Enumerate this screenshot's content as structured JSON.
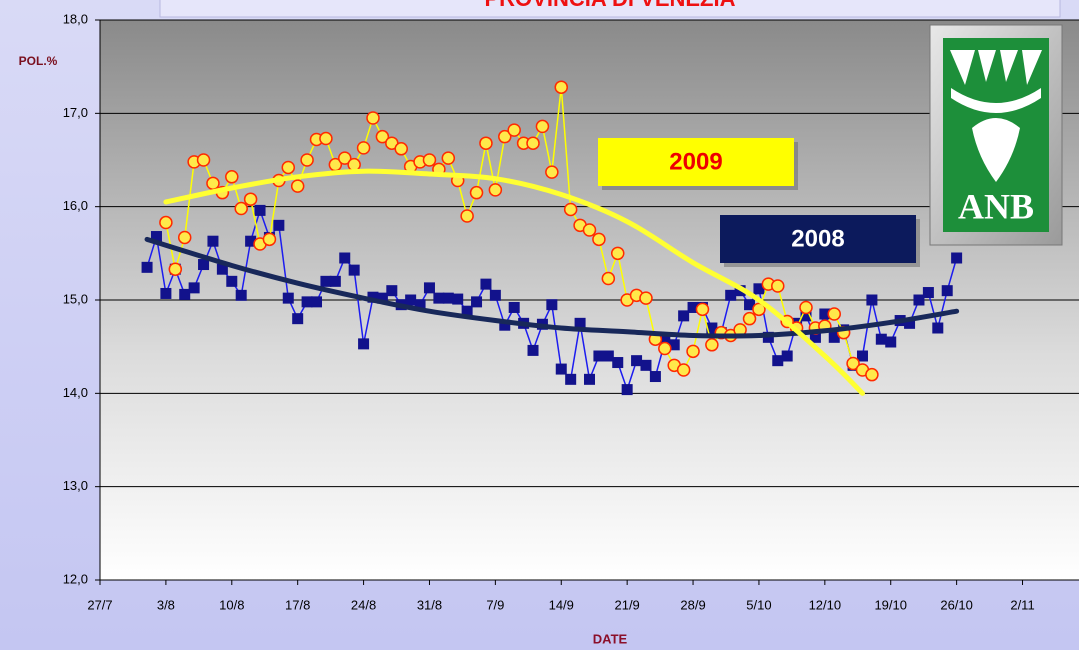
{
  "chart_data": {
    "type": "line",
    "title": "PROVINCIA DI VENEZIA",
    "y_label": "POL.%",
    "x_label": "DATE",
    "logo_text": "ANB",
    "ylim": [
      12,
      18
    ],
    "yticks": [
      {
        "value": 12,
        "label": "12,0"
      },
      {
        "value": 13,
        "label": "13,0"
      },
      {
        "value": 14,
        "label": "14,0"
      },
      {
        "value": 15,
        "label": "15,0"
      },
      {
        "value": 16,
        "label": "16,0"
      },
      {
        "value": 17,
        "label": "17,0"
      },
      {
        "value": 18,
        "label": "18,0"
      }
    ],
    "xlim": [
      "27/7",
      "8/11"
    ],
    "xticks": [
      "27/7",
      "3/8",
      "10/8",
      "17/8",
      "24/8",
      "31/8",
      "7/9",
      "14/9",
      "21/9",
      "28/9",
      "5/10",
      "12/10",
      "19/10",
      "26/10",
      "2/11"
    ],
    "grid": true,
    "series": [
      {
        "name": "2008",
        "color": "#1c1cf0",
        "marker": "square",
        "marker_color": "#12128c",
        "label_box_color": "#0c1a5c",
        "label_text_color": "#ffffff",
        "trend_color": "#18285a",
        "x": [
          "1/8",
          "2/8",
          "3/8",
          "4/8",
          "5/8",
          "6/8",
          "7/8",
          "8/8",
          "9/8",
          "10/8",
          "11/8",
          "12/8",
          "13/8",
          "14/8",
          "15/8",
          "16/8",
          "17/8",
          "18/8",
          "19/8",
          "20/8",
          "21/8",
          "22/8",
          "23/8",
          "24/8",
          "25/8",
          "26/8",
          "27/8",
          "28/8",
          "29/8",
          "30/8",
          "31/8",
          "1/9",
          "2/9",
          "3/9",
          "4/9",
          "5/9",
          "6/9",
          "7/9",
          "8/9",
          "9/9",
          "10/9",
          "11/9",
          "12/9",
          "13/9",
          "14/9",
          "15/9",
          "16/9",
          "17/9",
          "18/9",
          "19/9",
          "20/9",
          "21/9",
          "22/9",
          "23/9",
          "24/9",
          "25/9",
          "26/9",
          "27/9",
          "28/9",
          "29/9",
          "30/9",
          "1/10",
          "2/10",
          "3/10",
          "4/10",
          "5/10",
          "6/10",
          "7/10",
          "8/10",
          "9/10",
          "10/10",
          "11/10",
          "12/10",
          "13/10",
          "14/10",
          "15/10",
          "16/10",
          "17/10",
          "18/10",
          "19/10",
          "20/10",
          "21/10",
          "22/10",
          "23/10",
          "24/10",
          "25/10",
          "26/10"
        ],
        "values": [
          15.35,
          15.68,
          15.07,
          15.33,
          15.06,
          15.13,
          15.38,
          15.63,
          15.33,
          15.2,
          15.05,
          15.63,
          15.96,
          15.67,
          15.8,
          15.02,
          14.8,
          14.98,
          14.98,
          15.2,
          15.2,
          15.45,
          15.32,
          14.53,
          15.03,
          15.02,
          15.1,
          14.95,
          15.0,
          14.95,
          15.13,
          15.02,
          15.02,
          15.01,
          14.88,
          14.98,
          15.17,
          15.05,
          14.73,
          14.92,
          14.75,
          14.46,
          14.74,
          14.95,
          14.26,
          14.15,
          14.75,
          14.15,
          14.4,
          14.4,
          14.33,
          14.04,
          14.35,
          14.3,
          14.18,
          14.55,
          14.52,
          14.83,
          14.92,
          14.92,
          14.7,
          14.65,
          15.05,
          15.1,
          14.95,
          15.12,
          14.6,
          14.35,
          14.4,
          14.75,
          14.83,
          14.6,
          14.85,
          14.6,
          14.68,
          14.3,
          14.4,
          15.0,
          14.58,
          14.55,
          14.78,
          14.75,
          15.0,
          15.08,
          14.7,
          15.1,
          15.45
        ],
        "trend_x": [
          "1/8",
          "10/8",
          "17/8",
          "24/8",
          "31/8",
          "7/9",
          "14/9",
          "21/9",
          "28/9",
          "5/10",
          "12/10",
          "19/10",
          "26/10"
        ],
        "trend_values": [
          15.65,
          15.37,
          15.18,
          15.02,
          14.88,
          14.78,
          14.7,
          14.66,
          14.62,
          14.62,
          14.67,
          14.76,
          14.88
        ]
      },
      {
        "name": "2009",
        "color": "#ffff00",
        "marker": "circle",
        "marker_color": "#ffe94a",
        "label_box_color": "#ffff00",
        "label_text_color": "#ee0000",
        "trend_color": "#ffff33",
        "x": [
          "3/8",
          "4/8",
          "5/8",
          "6/8",
          "7/8",
          "8/8",
          "9/8",
          "10/8",
          "11/8",
          "12/8",
          "13/8",
          "14/8",
          "15/8",
          "16/8",
          "17/8",
          "18/8",
          "19/8",
          "20/8",
          "21/8",
          "22/8",
          "23/8",
          "24/8",
          "25/8",
          "26/8",
          "27/8",
          "28/8",
          "29/8",
          "30/8",
          "31/8",
          "1/9",
          "2/9",
          "3/9",
          "4/9",
          "5/9",
          "6/9",
          "7/9",
          "8/9",
          "9/9",
          "10/9",
          "11/9",
          "12/9",
          "13/9",
          "14/9",
          "15/9",
          "16/9",
          "17/9",
          "18/9",
          "19/9",
          "20/9",
          "21/9",
          "22/9",
          "23/9",
          "24/9",
          "25/9",
          "26/9",
          "27/9",
          "28/9",
          "29/9",
          "30/9",
          "1/10",
          "2/10",
          "3/10",
          "4/10",
          "5/10",
          "6/10",
          "7/10",
          "8/10",
          "9/10",
          "10/10",
          "11/10",
          "12/10",
          "13/10",
          "14/10",
          "15/10",
          "16/10",
          "17/10"
        ],
        "values": [
          15.83,
          15.33,
          15.67,
          16.48,
          16.5,
          16.25,
          16.15,
          16.32,
          15.98,
          16.08,
          15.6,
          15.65,
          16.28,
          16.42,
          16.22,
          16.5,
          16.72,
          16.73,
          16.45,
          16.52,
          16.45,
          16.63,
          16.95,
          16.75,
          16.68,
          16.62,
          16.43,
          16.48,
          16.5,
          16.4,
          16.52,
          16.28,
          15.9,
          16.15,
          16.68,
          16.18,
          16.75,
          16.82,
          16.68,
          16.68,
          16.86,
          16.37,
          17.28,
          15.97,
          15.8,
          15.75,
          15.65,
          15.23,
          15.5,
          15.0,
          15.05,
          15.02,
          14.58,
          14.48,
          14.3,
          14.25,
          14.45,
          14.9,
          14.52,
          14.65,
          14.62,
          14.68,
          14.8,
          14.9,
          15.17,
          15.15,
          14.77,
          14.7,
          14.92,
          14.7,
          14.72,
          14.85,
          14.65,
          14.32,
          14.25,
          14.2
        ],
        "trend_x": [
          "3/8",
          "10/8",
          "17/8",
          "24/8",
          "31/8",
          "7/9",
          "14/9",
          "21/9",
          "28/9",
          "5/10",
          "12/10",
          "16/10"
        ],
        "trend_values": [
          16.05,
          16.2,
          16.32,
          16.38,
          16.35,
          16.3,
          16.13,
          15.84,
          15.4,
          15.0,
          14.4,
          14.0
        ]
      }
    ]
  }
}
